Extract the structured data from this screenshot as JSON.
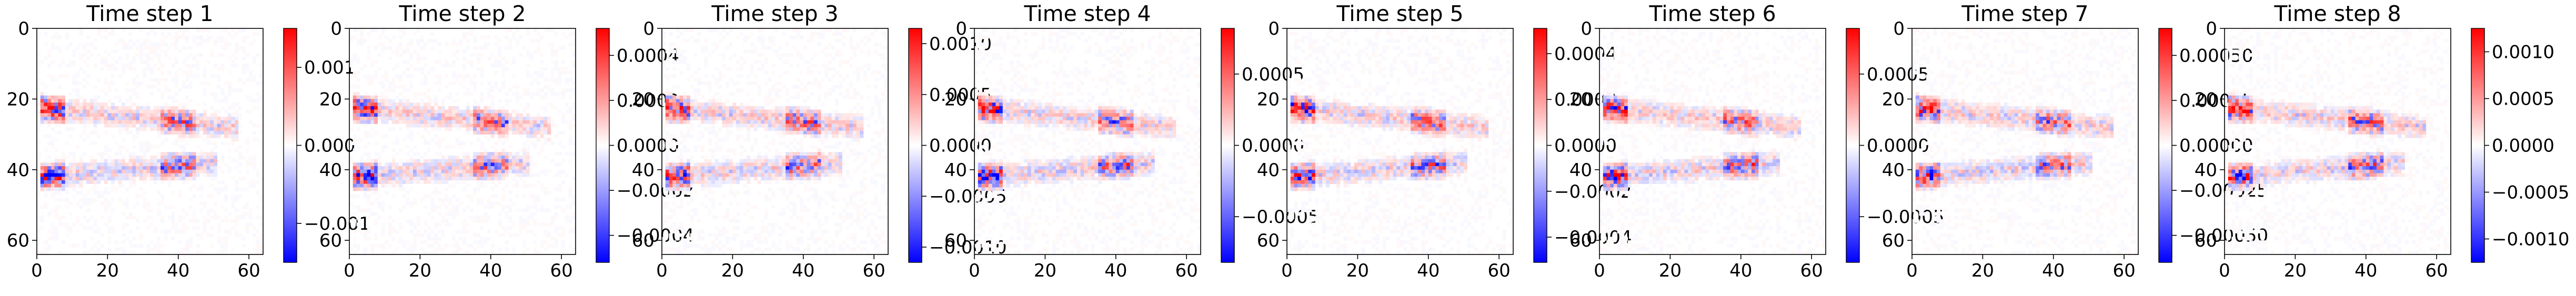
{
  "chart_data": [
    {
      "type": "heatmap",
      "title": "Time step 1",
      "xlim": [
        0,
        64
      ],
      "ylim": [
        64,
        0
      ],
      "x_ticks": [
        "0",
        "20",
        "40",
        "60"
      ],
      "y_ticks": [
        "0",
        "20",
        "40",
        "60"
      ],
      "colormap": "bwr",
      "colorbar_range": [
        -0.0015,
        0.0015
      ],
      "colorbar_ticks": [
        {
          "value": 0.001,
          "label": "0.001"
        },
        {
          "value": 0.0,
          "label": "0.000"
        },
        {
          "value": -0.001,
          "label": "−0.001"
        }
      ]
    },
    {
      "type": "heatmap",
      "title": "Time step 2",
      "xlim": [
        0,
        64
      ],
      "ylim": [
        64,
        0
      ],
      "x_ticks": [
        "0",
        "20",
        "40",
        "60"
      ],
      "y_ticks": [
        "0",
        "20",
        "40",
        "60"
      ],
      "colormap": "bwr",
      "colorbar_range": [
        -0.00052,
        0.00052
      ],
      "colorbar_ticks": [
        {
          "value": 0.0004,
          "label": "0.0004"
        },
        {
          "value": 0.0002,
          "label": "0.0002"
        },
        {
          "value": 0.0,
          "label": "0.0000"
        },
        {
          "value": -0.0002,
          "label": "−0.0002"
        },
        {
          "value": -0.0004,
          "label": "−0.0004"
        }
      ]
    },
    {
      "type": "heatmap",
      "title": "Time step 3",
      "xlim": [
        0,
        64
      ],
      "ylim": [
        64,
        0
      ],
      "x_ticks": [
        "0",
        "20",
        "40",
        "60"
      ],
      "y_ticks": [
        "0",
        "20",
        "40",
        "60"
      ],
      "colormap": "bwr",
      "colorbar_range": [
        -0.00115,
        0.00115
      ],
      "colorbar_ticks": [
        {
          "value": 0.001,
          "label": "0.0010"
        },
        {
          "value": 0.0005,
          "label": "0.0005"
        },
        {
          "value": 0.0,
          "label": "0.0000"
        },
        {
          "value": -0.0005,
          "label": "−0.0005"
        },
        {
          "value": -0.001,
          "label": "−0.0010"
        }
      ]
    },
    {
      "type": "heatmap",
      "title": "Time step 4",
      "xlim": [
        0,
        64
      ],
      "ylim": [
        64,
        0
      ],
      "x_ticks": [
        "0",
        "20",
        "40",
        "60"
      ],
      "y_ticks": [
        "0",
        "20",
        "40",
        "60"
      ],
      "colormap": "bwr",
      "colorbar_range": [
        -0.00082,
        0.00082
      ],
      "colorbar_ticks": [
        {
          "value": 0.0005,
          "label": "0.0005"
        },
        {
          "value": 0.0,
          "label": "0.0000"
        },
        {
          "value": -0.0005,
          "label": "−0.0005"
        }
      ]
    },
    {
      "type": "heatmap",
      "title": "Time step 5",
      "xlim": [
        0,
        64
      ],
      "ylim": [
        64,
        0
      ],
      "x_ticks": [
        "0",
        "20",
        "40",
        "60"
      ],
      "y_ticks": [
        "0",
        "20",
        "40",
        "60"
      ],
      "colormap": "bwr",
      "colorbar_range": [
        -0.00051,
        0.00051
      ],
      "colorbar_ticks": [
        {
          "value": 0.0004,
          "label": "0.0004"
        },
        {
          "value": 0.0002,
          "label": "0.0002"
        },
        {
          "value": 0.0,
          "label": "0.0000"
        },
        {
          "value": -0.0002,
          "label": "−0.0002"
        },
        {
          "value": -0.0004,
          "label": "−0.0004"
        }
      ]
    },
    {
      "type": "heatmap",
      "title": "Time step 6",
      "xlim": [
        0,
        64
      ],
      "ylim": [
        64,
        0
      ],
      "x_ticks": [
        "0",
        "20",
        "40",
        "60"
      ],
      "y_ticks": [
        "0",
        "20",
        "40",
        "60"
      ],
      "colormap": "bwr",
      "colorbar_range": [
        -0.00082,
        0.00082
      ],
      "colorbar_ticks": [
        {
          "value": 0.0005,
          "label": "0.0005"
        },
        {
          "value": 0.0,
          "label": "0.0000"
        },
        {
          "value": -0.0005,
          "label": "−0.0005"
        }
      ]
    },
    {
      "type": "heatmap",
      "title": "Time step 7",
      "xlim": [
        0,
        64
      ],
      "ylim": [
        64,
        0
      ],
      "x_ticks": [
        "0",
        "20",
        "40",
        "60"
      ],
      "y_ticks": [
        "0",
        "20",
        "40",
        "60"
      ],
      "colormap": "bwr",
      "colorbar_range": [
        -0.00065,
        0.00065
      ],
      "colorbar_ticks": [
        {
          "value": 0.0005,
          "label": "0.00050"
        },
        {
          "value": 0.00025,
          "label": "0.00025"
        },
        {
          "value": 0.0,
          "label": "0.00000"
        },
        {
          "value": -0.00025,
          "label": "−0.00025"
        },
        {
          "value": -0.0005,
          "label": "−0.00050"
        }
      ]
    },
    {
      "type": "heatmap",
      "title": "Time step 8",
      "xlim": [
        0,
        64
      ],
      "ylim": [
        64,
        0
      ],
      "x_ticks": [
        "0",
        "20",
        "40",
        "60"
      ],
      "y_ticks": [
        "0",
        "20",
        "40",
        "60"
      ],
      "colormap": "bwr",
      "colorbar_range": [
        -0.00125,
        0.00125
      ],
      "colorbar_ticks": [
        {
          "value": 0.001,
          "label": "0.0010"
        },
        {
          "value": 0.0005,
          "label": "0.0005"
        },
        {
          "value": 0.0,
          "label": "0.0000"
        },
        {
          "value": -0.0005,
          "label": "−0.0005"
        },
        {
          "value": -0.001,
          "label": "−0.0010"
        }
      ]
    }
  ]
}
